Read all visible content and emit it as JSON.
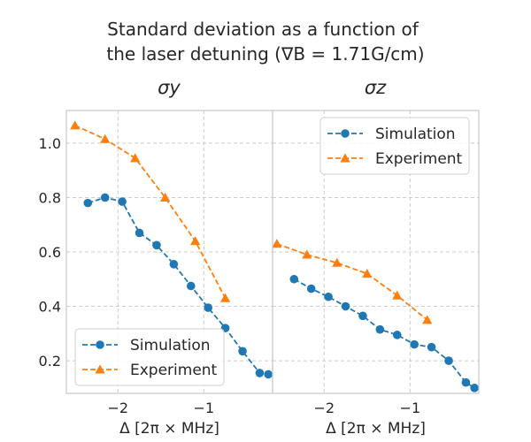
{
  "figure": {
    "title_line1": "Standard deviation as a function of",
    "title_line2": "the laser detuning (∇B = 1.71G/cm)"
  },
  "colors": {
    "simulation": "#1f77b4",
    "experiment": "#ff7f0e",
    "grid": "#cccccc",
    "axes_edge": "#c8c8c8"
  },
  "chart_data": [
    {
      "type": "line",
      "title": "σy",
      "xlabel": "Δ [2π × MHz]",
      "ylabel": "",
      "xlim": [
        -2.6,
        -0.2
      ],
      "ylim": [
        0.08,
        1.12
      ],
      "xticks": [
        -2,
        -1
      ],
      "xtick_labels": [
        "−2",
        "−1"
      ],
      "yticks": [
        0.2,
        0.4,
        0.6,
        0.8,
        1.0
      ],
      "ytick_labels": [
        "0.2",
        "0.4",
        "0.6",
        "0.8",
        "1.0"
      ],
      "grid": true,
      "legend_position": "lower-left",
      "series": [
        {
          "name": "Simulation",
          "marker": "circle",
          "x": [
            -2.35,
            -2.15,
            -1.95,
            -1.75,
            -1.55,
            -1.35,
            -1.15,
            -0.95,
            -0.75,
            -0.55,
            -0.35,
            -0.25
          ],
          "y": [
            0.78,
            0.8,
            0.785,
            0.67,
            0.625,
            0.555,
            0.475,
            0.395,
            0.32,
            0.235,
            0.155,
            0.15
          ]
        },
        {
          "name": "Experiment",
          "marker": "triangle",
          "x": [
            -2.5,
            -2.15,
            -1.8,
            -1.45,
            -1.1,
            -0.75
          ],
          "y": [
            1.065,
            1.015,
            0.945,
            0.8,
            0.64,
            0.43
          ]
        }
      ]
    },
    {
      "type": "line",
      "title": "σz",
      "xlabel": "Δ [2π × MHz]",
      "ylabel": "",
      "xlim": [
        -2.6,
        -0.2
      ],
      "ylim": [
        0.08,
        1.12
      ],
      "xticks": [
        -2,
        -1
      ],
      "xtick_labels": [
        "−2",
        "−1"
      ],
      "yticks": [
        0.2,
        0.4,
        0.6,
        0.8,
        1.0
      ],
      "ytick_labels": [],
      "grid": true,
      "legend_position": "upper-right",
      "series": [
        {
          "name": "Simulation",
          "marker": "circle",
          "x": [
            -2.35,
            -2.15,
            -1.95,
            -1.75,
            -1.55,
            -1.35,
            -1.15,
            -0.95,
            -0.75,
            -0.55,
            -0.35,
            -0.25
          ],
          "y": [
            0.5,
            0.465,
            0.435,
            0.4,
            0.365,
            0.315,
            0.295,
            0.26,
            0.25,
            0.2,
            0.12,
            0.1
          ]
        },
        {
          "name": "Experiment",
          "marker": "triangle",
          "x": [
            -2.55,
            -2.2,
            -1.85,
            -1.5,
            -1.15,
            -0.8
          ],
          "y": [
            0.63,
            0.59,
            0.56,
            0.52,
            0.44,
            0.35
          ]
        }
      ]
    }
  ]
}
